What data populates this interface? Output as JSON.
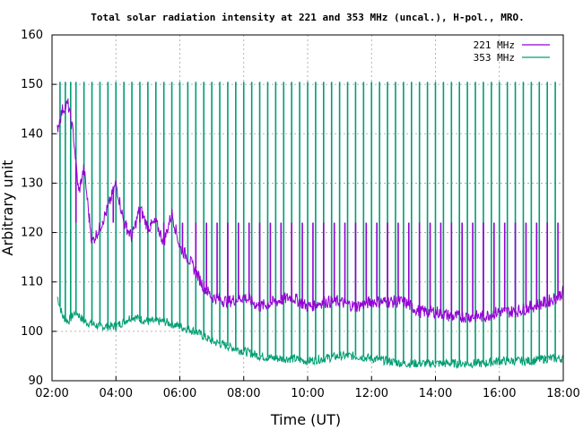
{
  "chart_data": {
    "type": "line",
    "title": "Total solar radiation intensity at 221 and 353 MHz (uncal.), H-pol., MRO.",
    "xlabel": "Time (UT)",
    "ylabel": "Arbitrary unit",
    "x_range_hours": [
      2.0,
      18.0
    ],
    "ylim": [
      90,
      160
    ],
    "x_ticks": [
      "02:00",
      "04:00",
      "06:00",
      "08:00",
      "10:00",
      "12:00",
      "14:00",
      "16:00",
      "18:00"
    ],
    "y_ticks": [
      90,
      100,
      110,
      120,
      130,
      140,
      150,
      160
    ],
    "grid": true,
    "legend_position": "top-right",
    "series": [
      {
        "name": "221 MHz",
        "color": "#9400d3",
        "x": [
          "02:10",
          "02:20",
          "02:30",
          "02:40",
          "02:50",
          "03:00",
          "03:15",
          "03:30",
          "03:45",
          "04:00",
          "04:15",
          "04:30",
          "04:45",
          "05:00",
          "05:15",
          "05:30",
          "05:45",
          "06:00",
          "06:15",
          "06:30",
          "06:45",
          "07:00",
          "07:30",
          "08:00",
          "08:30",
          "09:00",
          "09:30",
          "10:00",
          "10:30",
          "11:00",
          "11:30",
          "12:00",
          "12:30",
          "13:00",
          "13:30",
          "14:00",
          "14:30",
          "15:00",
          "15:30",
          "16:00",
          "16:30",
          "17:00",
          "17:30",
          "17:50",
          "18:00"
        ],
        "y": [
          141,
          145,
          146,
          140,
          128,
          133,
          118,
          121,
          125,
          130,
          122,
          119,
          125,
          121,
          122,
          118,
          124,
          117,
          115,
          112,
          109,
          107,
          106,
          107,
          105,
          106,
          107,
          105,
          106,
          106,
          105,
          106,
          106,
          106,
          104,
          104,
          103,
          103,
          103,
          104,
          104,
          105,
          106,
          107,
          108
        ],
        "spike_peak": 122,
        "spike_times": [
          "02:45",
          "03:10",
          "03:35",
          "03:55",
          "04:20",
          "04:45",
          "05:05",
          "05:30",
          "06:05",
          "06:30",
          "06:50",
          "07:10",
          "07:30",
          "07:50",
          "08:10",
          "08:30",
          "08:50",
          "09:10",
          "09:30",
          "09:50",
          "10:10",
          "10:30",
          "10:50",
          "11:10",
          "11:30",
          "11:50",
          "12:10",
          "12:30",
          "12:50",
          "13:10",
          "13:30",
          "13:50",
          "14:10",
          "14:30",
          "14:50",
          "15:10",
          "15:30",
          "15:50",
          "16:10",
          "16:30",
          "16:50",
          "17:10",
          "17:30",
          "17:50"
        ]
      },
      {
        "name": "353 MHz",
        "color": "#009e73",
        "x": [
          "02:10",
          "02:20",
          "02:30",
          "02:45",
          "03:00",
          "03:30",
          "04:00",
          "04:30",
          "05:00",
          "05:30",
          "06:00",
          "06:30",
          "07:00",
          "07:30",
          "08:00",
          "08:30",
          "09:00",
          "09:30",
          "10:00",
          "10:30",
          "11:00",
          "11:30",
          "12:00",
          "12:30",
          "13:00",
          "13:30",
          "14:00",
          "14:30",
          "15:00",
          "15:30",
          "16:00",
          "16:30",
          "17:00",
          "17:30",
          "18:00"
        ],
        "y": [
          107,
          103,
          102,
          104,
          102,
          101,
          101,
          103,
          102,
          102,
          101,
          100,
          98,
          97,
          96,
          95,
          94.5,
          94.5,
          94,
          94.5,
          95,
          95,
          94.5,
          94,
          93.5,
          93.5,
          93.5,
          93.5,
          93.5,
          93.5,
          94,
          94,
          94,
          94.5,
          94.5
        ],
        "spike_peak": 150.5,
        "spike_times": [
          "02:15",
          "02:25",
          "02:35",
          "02:45",
          "03:00",
          "03:15",
          "03:30",
          "03:45",
          "04:00",
          "04:15",
          "04:30",
          "04:45",
          "05:00",
          "05:15",
          "05:30",
          "05:45",
          "06:00",
          "06:15",
          "06:30",
          "06:45",
          "07:00",
          "07:15",
          "07:30",
          "07:45",
          "08:00",
          "08:15",
          "08:30",
          "08:45",
          "09:00",
          "09:15",
          "09:30",
          "09:45",
          "10:00",
          "10:15",
          "10:30",
          "10:45",
          "11:00",
          "11:15",
          "11:30",
          "11:45",
          "12:00",
          "12:15",
          "12:30",
          "12:45",
          "13:00",
          "13:15",
          "13:30",
          "13:45",
          "14:00",
          "14:15",
          "14:30",
          "14:45",
          "15:00",
          "15:15",
          "15:30",
          "15:45",
          "16:00",
          "16:15",
          "16:30",
          "16:45",
          "17:00",
          "17:15",
          "17:30",
          "17:45"
        ]
      }
    ]
  }
}
